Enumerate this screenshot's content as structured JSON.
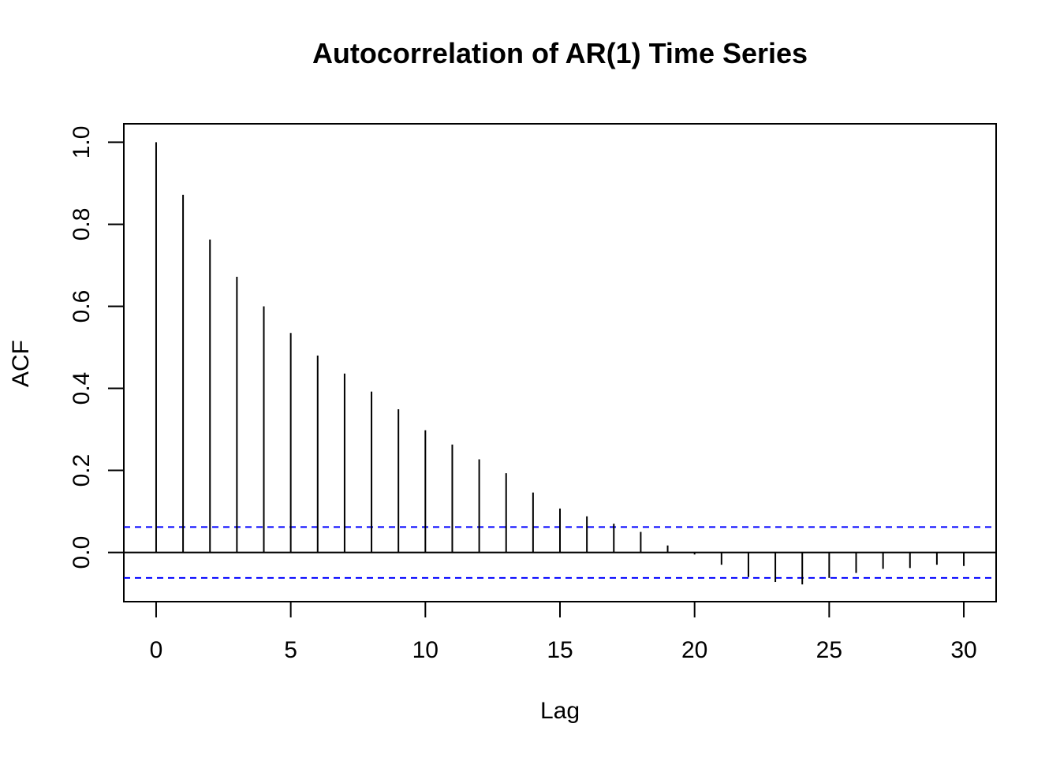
{
  "chart_data": {
    "type": "bar",
    "subtype": "acf-spike",
    "title": "Autocorrelation of AR(1) Time Series",
    "xlabel": "Lag",
    "ylabel": "ACF",
    "x": [
      0,
      1,
      2,
      3,
      4,
      5,
      6,
      7,
      8,
      9,
      10,
      11,
      12,
      13,
      14,
      15,
      16,
      17,
      18,
      19,
      20,
      21,
      22,
      23,
      24,
      25,
      26,
      27,
      28,
      29,
      30
    ],
    "values": [
      1.0,
      0.872,
      0.763,
      0.672,
      0.6,
      0.535,
      0.48,
      0.436,
      0.392,
      0.349,
      0.298,
      0.263,
      0.227,
      0.193,
      0.146,
      0.107,
      0.088,
      0.07,
      0.05,
      0.017,
      -0.005,
      -0.03,
      -0.06,
      -0.072,
      -0.078,
      -0.062,
      -0.05,
      -0.04,
      -0.038,
      -0.03,
      -0.033
    ],
    "confidence_band": 0.062,
    "xlim": [
      -1.2,
      31.2
    ],
    "ylim": [
      -0.12,
      1.045
    ],
    "xticks": [
      0,
      5,
      10,
      15,
      20,
      25,
      30
    ],
    "xtick_labels": [
      "0",
      "5",
      "10",
      "15",
      "20",
      "25",
      "30"
    ],
    "yticks": [
      0.0,
      0.2,
      0.4,
      0.6,
      0.8,
      1.0
    ],
    "ytick_labels": [
      "0.0",
      "0.2",
      "0.4",
      "0.6",
      "0.8",
      "1.0"
    ],
    "grid": false,
    "legend": "none",
    "colors": {
      "bars": "#000000",
      "confidence_band": "#0000ff",
      "zero_line": "#000000",
      "frame": "#000000"
    }
  }
}
